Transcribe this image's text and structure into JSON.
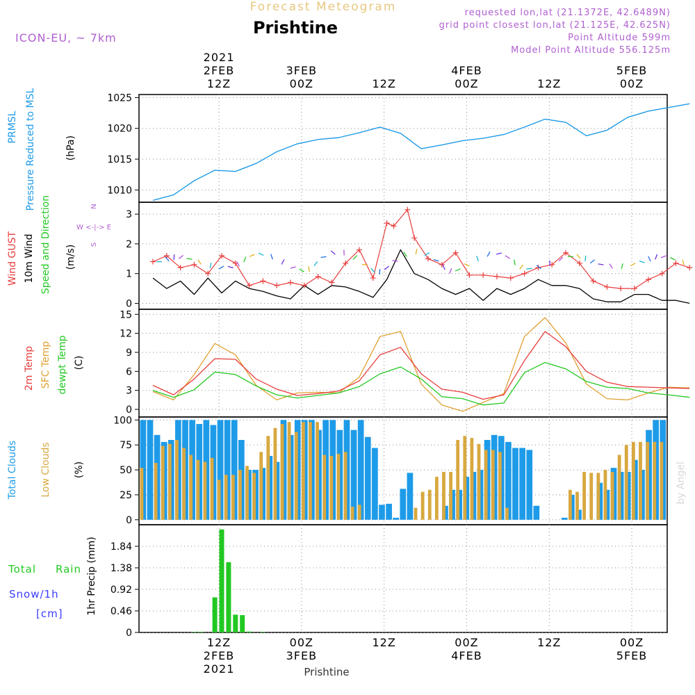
{
  "header": {
    "title_top": "Forecast Meteogram",
    "location": "Prishtine",
    "model": "ICON-EU, ~ 7km",
    "requested": "requested lon,lat (21.1372E, 42.6489N)",
    "grid_point": "grid point closest lon,lat (21.125E, 42.625N)",
    "point_alt": "Point Altitude 599m",
    "model_alt": "Model Point Altitude 556.125m",
    "footer": "Prishtine",
    "watermark": "by Angel"
  },
  "time_axis": {
    "top_labels": [
      {
        "lines": [
          "2021",
          "2FEB",
          "12Z"
        ]
      },
      {
        "lines": [
          "3FEB",
          "00Z"
        ]
      },
      {
        "lines": [
          "12Z"
        ]
      },
      {
        "lines": [
          "4FEB",
          "00Z"
        ]
      },
      {
        "lines": [
          "12Z"
        ]
      },
      {
        "lines": [
          "5FEB",
          "00Z"
        ]
      }
    ],
    "bottom_labels": [
      {
        "lines": [
          "12Z",
          "2FEB",
          "2021"
        ]
      },
      {
        "lines": [
          "00Z",
          "3FEB"
        ]
      },
      {
        "lines": [
          "12Z"
        ]
      },
      {
        "lines": [
          "00Z",
          "4FEB"
        ]
      },
      {
        "lines": [
          "12Z"
        ]
      },
      {
        "lines": [
          "00Z",
          "5FEB"
        ]
      }
    ]
  },
  "panels": {
    "pressure": {
      "labels": [
        "PRMSL",
        "Pressure Reduced to MSL",
        "(hPa)"
      ],
      "yticks": [
        "1025",
        "1020",
        "1015",
        "1010"
      ]
    },
    "wind": {
      "labels": [
        "Wind GUST",
        "10m Wind",
        "Speed and Direction",
        "(m/s)"
      ],
      "compass": [
        "N",
        "W <-|-> E",
        "S"
      ],
      "yticks": [
        "3",
        "2",
        "1",
        "0"
      ]
    },
    "temp": {
      "labels": [
        "2m Temp",
        "SFC Temp",
        "dewpt Temp",
        "(C)"
      ],
      "yticks": [
        "15",
        "12",
        "9",
        "6",
        "3",
        "0"
      ]
    },
    "clouds": {
      "labels": [
        "Total Clouds",
        "Low Clouds",
        "(%)"
      ],
      "yticks": [
        "100",
        "75",
        "50",
        "25",
        "0"
      ]
    },
    "precip": {
      "labels": [
        "Total",
        "Rain",
        "Snow/1h",
        "[cm]",
        "1hr Precip (mm)"
      ],
      "yticks": [
        "1.84",
        "1.38",
        "0.92",
        "0.46",
        "0"
      ]
    }
  },
  "colors": {
    "pressure": "#1e9be8",
    "gust": "#e83c3c",
    "wind": "#000000",
    "t2m": "#e83c3c",
    "sfc": "#e0a030",
    "dew": "#22c822",
    "total_clouds": "#1e9be8",
    "low_clouds": "#d8a840",
    "rain": "#22c822",
    "snow": "#3c3cff",
    "purple": "#b060d0"
  },
  "chart_data": [
    {
      "type": "line",
      "name": "PRMSL",
      "x": [
        0,
        3,
        6,
        9,
        12,
        15,
        18,
        21,
        24,
        27,
        30,
        33,
        36,
        39,
        42,
        45,
        48,
        51,
        54,
        57,
        60,
        63,
        66,
        69,
        72,
        75,
        78
      ],
      "values": [
        1008.3,
        1009.2,
        1011.5,
        1013.2,
        1013,
        1014.3,
        1016.2,
        1017.5,
        1018.2,
        1018.5,
        1019.3,
        1020.2,
        1019.2,
        1016.7,
        1017.3,
        1018,
        1018.4,
        1019,
        1020.2,
        1021.5,
        1021,
        1018.8,
        1019.7,
        1021.8,
        1022.8,
        1023.4,
        1024
      ]
    },
    {
      "type": "line",
      "name": "wind",
      "x": [
        0,
        2,
        4,
        6,
        8,
        10,
        12,
        14,
        16,
        18,
        20,
        22,
        24,
        26,
        28,
        30,
        32,
        34,
        36,
        38,
        40,
        42,
        44,
        46,
        48,
        50,
        52,
        54,
        56,
        58,
        60,
        62,
        64,
        66,
        68,
        70,
        72,
        74,
        76,
        78
      ],
      "values": [
        0.85,
        0.5,
        0.75,
        0.3,
        0.85,
        0.35,
        0.75,
        0.5,
        0.4,
        0.25,
        0.15,
        0.6,
        0.3,
        0.6,
        0.55,
        0.4,
        0.2,
        0.8,
        1.8,
        1,
        0.8,
        0.5,
        0.3,
        0.5,
        0.1,
        0.5,
        0.3,
        0.5,
        0.8,
        0.6,
        0.6,
        0.5,
        0.15,
        0.05,
        0.05,
        0.3,
        0.3,
        0.1,
        0.1,
        0.0
      ]
    },
    {
      "type": "line",
      "name": "gust",
      "x": [
        0,
        2,
        4,
        6,
        8,
        10,
        12,
        14,
        16,
        18,
        20,
        22,
        24,
        26,
        28,
        30,
        32,
        34,
        35,
        37,
        38,
        40,
        42,
        44,
        46,
        48,
        50,
        52,
        54,
        56,
        58,
        60,
        62,
        64,
        66,
        68,
        70,
        72,
        74,
        76,
        78
      ],
      "values": [
        1.4,
        1.6,
        1.2,
        1.3,
        1.0,
        1.6,
        1.35,
        0.6,
        0.75,
        0.6,
        0.7,
        0.6,
        0.9,
        0.7,
        1.35,
        1.8,
        0.85,
        2.7,
        2.6,
        3.15,
        2.2,
        1.5,
        1.3,
        1.7,
        0.95,
        0.95,
        0.9,
        0.85,
        1.0,
        1.2,
        1.3,
        1.7,
        1.35,
        0.75,
        0.55,
        0.5,
        0.5,
        0.8,
        1.0,
        1.35,
        1.2
      ]
    },
    {
      "type": "line",
      "name": "2m Temp",
      "x": [
        0,
        3,
        6,
        9,
        12,
        15,
        18,
        21,
        24,
        27,
        30,
        33,
        36,
        39,
        42,
        45,
        48,
        51,
        54,
        57,
        60,
        63,
        66,
        69,
        72,
        75,
        78
      ],
      "values": [
        3.8,
        2.3,
        4.8,
        8.0,
        7.9,
        4.8,
        3.2,
        2.2,
        2.5,
        2.9,
        4.5,
        8.6,
        9.8,
        5.6,
        3.2,
        2.7,
        1.6,
        2.3,
        7.7,
        12.3,
        9.9,
        6.0,
        4.3,
        3.6,
        3.5,
        3.4,
        3.3
      ]
    },
    {
      "type": "line",
      "name": "SFC Temp",
      "x": [
        0,
        3,
        6,
        9,
        12,
        15,
        18,
        21,
        24,
        27,
        30,
        33,
        36,
        39,
        42,
        45,
        48,
        51,
        54,
        57,
        60,
        63,
        66,
        69,
        72,
        75,
        78
      ],
      "values": [
        2.8,
        1.5,
        5.5,
        10.4,
        8.6,
        3.8,
        1.5,
        2.6,
        2.7,
        2.6,
        5.1,
        11.5,
        12.3,
        4.0,
        0.7,
        -0.3,
        1.1,
        2.5,
        11.5,
        14.5,
        10.5,
        4.0,
        1.7,
        1.5,
        2.6,
        3.5,
        3.4
      ]
    },
    {
      "type": "line",
      "name": "dewpt Temp",
      "x": [
        0,
        3,
        6,
        9,
        12,
        15,
        18,
        21,
        24,
        27,
        30,
        33,
        36,
        39,
        42,
        45,
        48,
        51,
        54,
        57,
        60,
        63,
        66,
        69,
        72,
        75,
        78
      ],
      "values": [
        3.0,
        1.9,
        3.1,
        5.9,
        5.5,
        3.7,
        2.3,
        1.8,
        2.2,
        2.6,
        3.6,
        5.6,
        6.7,
        4.8,
        2.0,
        1.7,
        0.7,
        1.0,
        5.8,
        7.4,
        6.4,
        4.4,
        3.5,
        3.3,
        2.6,
        2.3,
        1.9
      ]
    },
    {
      "type": "bar",
      "name": "Total Clouds",
      "values": [
        100,
        100,
        85,
        78,
        80,
        100,
        100,
        100,
        96,
        100,
        95,
        100,
        100,
        100,
        80,
        50,
        50,
        52,
        64,
        58,
        100,
        85,
        100,
        100,
        100,
        90,
        100,
        100,
        90,
        100,
        90,
        100,
        83,
        72,
        15,
        16,
        2,
        31,
        47,
        0,
        0,
        0,
        0,
        14,
        30,
        30,
        43,
        48,
        50,
        80,
        85,
        84,
        78,
        72,
        72,
        70,
        14,
        0,
        0,
        0,
        2,
        25,
        10,
        0,
        0,
        37,
        30,
        52,
        48,
        48,
        60,
        50,
        90,
        100,
        100
      ]
    },
    {
      "type": "bar",
      "name": "Low Clouds",
      "values": [
        52,
        0,
        57,
        74,
        76,
        80,
        72,
        65,
        60,
        58,
        62,
        40,
        45,
        45,
        50,
        54,
        47,
        68,
        84,
        92,
        96,
        98,
        88,
        98,
        98,
        98,
        65,
        64,
        66,
        68,
        13,
        15,
        0,
        0,
        0,
        0,
        0,
        0,
        0,
        12,
        28,
        30,
        43,
        48,
        48,
        80,
        84,
        82,
        76,
        70,
        70,
        68,
        12,
        0,
        0,
        0,
        0,
        0,
        0,
        0,
        0,
        30,
        28,
        48,
        47,
        47,
        50,
        48,
        65,
        75,
        78,
        78,
        78,
        78,
        78
      ]
    },
    {
      "type": "bar",
      "name": "1hr Precip",
      "values": [
        0,
        0,
        0,
        0,
        0.01,
        0.01,
        0,
        0.75,
        2.2,
        1.5,
        0.38,
        0.37,
        0.02,
        0,
        0.01,
        0
      ]
    }
  ]
}
